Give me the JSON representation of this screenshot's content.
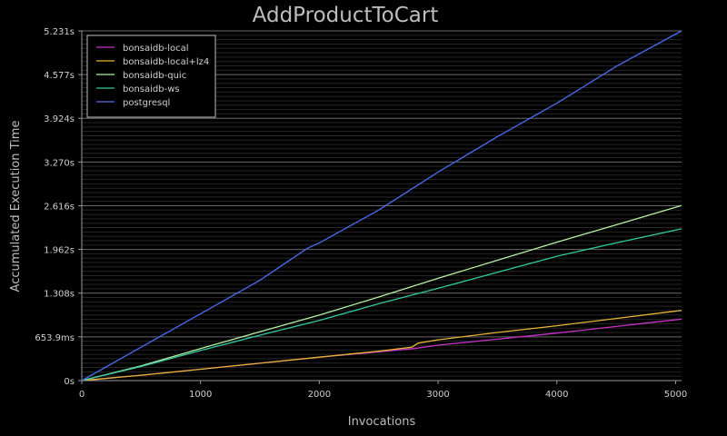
{
  "chart_data": {
    "type": "line",
    "title": "AddProductToCart",
    "xlabel": "Invocations",
    "ylabel": "Accumulated Execution Time",
    "xlim": [
      0,
      5050
    ],
    "ylim": [
      0,
      5.231
    ],
    "x_ticks": [
      {
        "value": 0,
        "label": "0"
      },
      {
        "value": 1000,
        "label": "1000"
      },
      {
        "value": 2000,
        "label": "2000"
      },
      {
        "value": 3000,
        "label": "3000"
      },
      {
        "value": 4000,
        "label": "4000"
      },
      {
        "value": 5000,
        "label": "5000"
      }
    ],
    "y_ticks": [
      {
        "value": 0,
        "label": "0s"
      },
      {
        "value": 0.6539,
        "label": "653.9ms"
      },
      {
        "value": 1.308,
        "label": "1.308s"
      },
      {
        "value": 1.962,
        "label": "1.962s"
      },
      {
        "value": 2.616,
        "label": "2.616s"
      },
      {
        "value": 3.27,
        "label": "3.270s"
      },
      {
        "value": 3.924,
        "label": "3.924s"
      },
      {
        "value": 4.577,
        "label": "4.577s"
      },
      {
        "value": 5.231,
        "label": "5.231s"
      }
    ],
    "grid": true,
    "legend_position": "top-left",
    "series": [
      {
        "name": "bonsaidb-local",
        "color": "#c832c8",
        "points": [
          [
            0,
            0
          ],
          [
            500,
            0.08
          ],
          [
            1000,
            0.17
          ],
          [
            1500,
            0.26
          ],
          [
            2000,
            0.35
          ],
          [
            2500,
            0.43
          ],
          [
            2800,
            0.48
          ],
          [
            3000,
            0.53
          ],
          [
            3500,
            0.62
          ],
          [
            4000,
            0.71
          ],
          [
            4500,
            0.81
          ],
          [
            5050,
            0.92
          ]
        ]
      },
      {
        "name": "bonsaidb-local+lz4",
        "color": "#e6b432",
        "points": [
          [
            0,
            0
          ],
          [
            500,
            0.08
          ],
          [
            1000,
            0.17
          ],
          [
            1500,
            0.26
          ],
          [
            2000,
            0.35
          ],
          [
            2500,
            0.44
          ],
          [
            2780,
            0.5
          ],
          [
            2830,
            0.56
          ],
          [
            3000,
            0.61
          ],
          [
            3500,
            0.72
          ],
          [
            4000,
            0.82
          ],
          [
            4500,
            0.93
          ],
          [
            5050,
            1.05
          ]
        ]
      },
      {
        "name": "bonsaidb-quic",
        "color": "#b4f0a0",
        "points": [
          [
            0,
            0
          ],
          [
            500,
            0.22
          ],
          [
            1000,
            0.48
          ],
          [
            1500,
            0.73
          ],
          [
            2000,
            0.98
          ],
          [
            2500,
            1.25
          ],
          [
            3000,
            1.53
          ],
          [
            3500,
            1.8
          ],
          [
            4000,
            2.07
          ],
          [
            4500,
            2.33
          ],
          [
            5050,
            2.62
          ]
        ]
      },
      {
        "name": "bonsaidb-ws",
        "color": "#32c8a0",
        "points": [
          [
            0,
            0
          ],
          [
            500,
            0.21
          ],
          [
            1000,
            0.45
          ],
          [
            1500,
            0.68
          ],
          [
            2000,
            0.9
          ],
          [
            2500,
            1.15
          ],
          [
            3000,
            1.38
          ],
          [
            3500,
            1.62
          ],
          [
            4000,
            1.86
          ],
          [
            4500,
            2.06
          ],
          [
            5050,
            2.27
          ]
        ]
      },
      {
        "name": "postgresql",
        "color": "#4a6cf0",
        "points": [
          [
            0,
            0
          ],
          [
            500,
            0.5
          ],
          [
            1000,
            1.0
          ],
          [
            1500,
            1.5
          ],
          [
            1900,
            1.98
          ],
          [
            2000,
            2.06
          ],
          [
            2500,
            2.55
          ],
          [
            3000,
            3.12
          ],
          [
            3500,
            3.65
          ],
          [
            4000,
            4.15
          ],
          [
            4500,
            4.7
          ],
          [
            5050,
            5.231
          ]
        ]
      }
    ]
  }
}
